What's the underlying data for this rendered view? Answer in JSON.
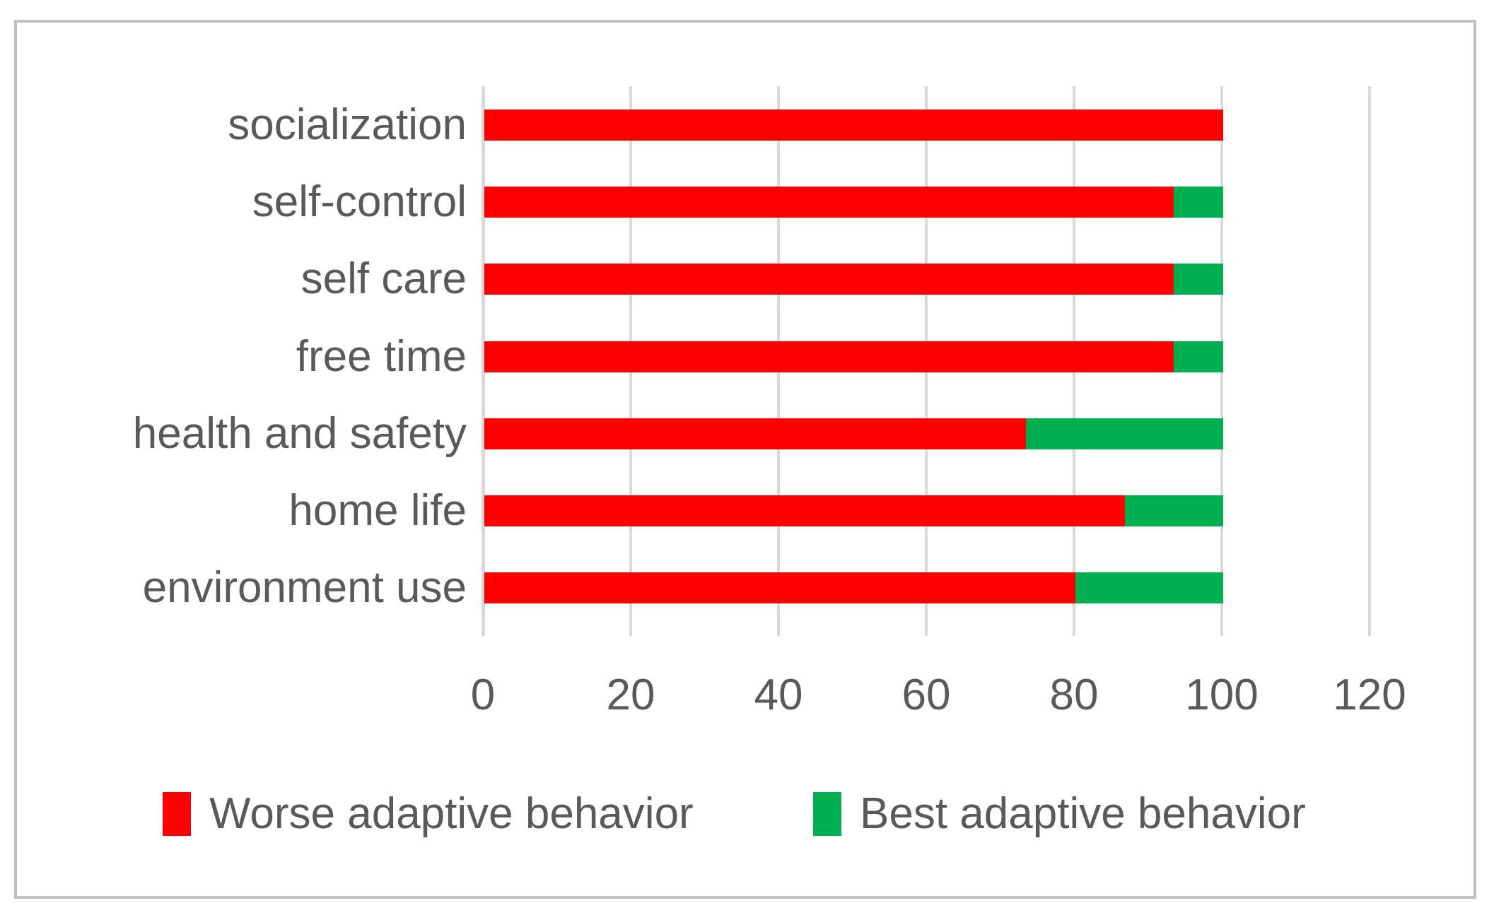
{
  "chart_data": {
    "type": "bar",
    "orientation": "horizontal-stacked",
    "title": "",
    "xlabel": "",
    "ylabel": "",
    "categories": [
      "socialization",
      "self-control",
      "self care",
      "free time",
      "health and safety",
      "home life",
      "environment use"
    ],
    "series": [
      {
        "name": "Worse adaptive behavior",
        "color": "#ff0000",
        "values": [
          100,
          93.3,
          93.3,
          93.3,
          73.3,
          86.7,
          80
        ]
      },
      {
        "name": "Best adaptive behavior",
        "color": "#00b050",
        "values": [
          0,
          6.7,
          6.7,
          6.7,
          26.7,
          13.3,
          20
        ]
      }
    ],
    "xlim": [
      0,
      120
    ],
    "xticks": [
      0,
      20,
      40,
      60,
      80,
      100,
      120
    ],
    "grid": true,
    "legend_position": "bottom"
  },
  "legend": {
    "items": [
      {
        "label": "Worse adaptive behavior",
        "color": "#ff0000"
      },
      {
        "label": "Best adaptive behavior",
        "color": "#00b050"
      }
    ]
  },
  "colors": {
    "text": "#595959",
    "gridline": "#d9d9d9",
    "frame_border": "#bfbfbf",
    "background": "#ffffff"
  }
}
